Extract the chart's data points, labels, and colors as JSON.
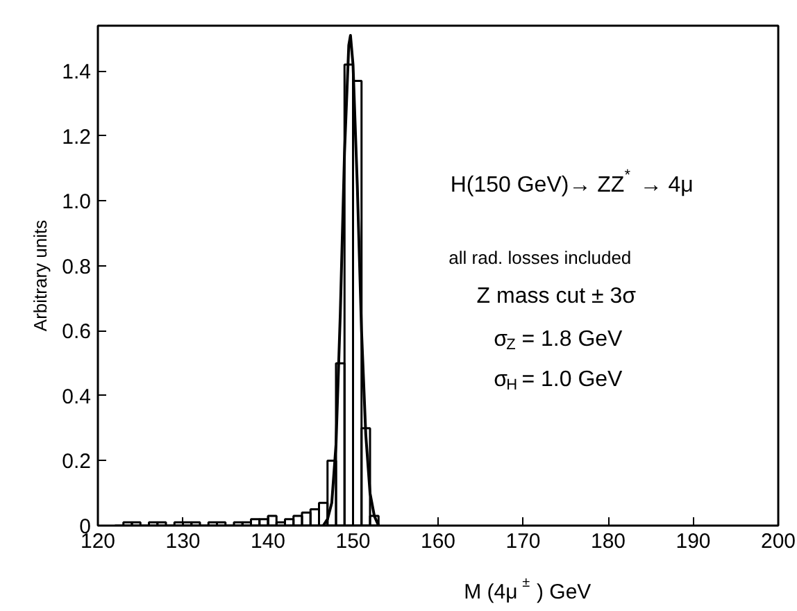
{
  "chart_data": {
    "type": "histogram",
    "xlabel": "M (4μ$^{±}$)  GeV",
    "ylabel": "Arbitrary units",
    "bins": [
      122,
      123,
      124,
      125,
      126,
      127,
      128,
      129,
      130,
      131,
      132,
      133,
      134,
      135,
      136,
      137,
      138,
      139,
      140,
      141,
      142,
      143,
      144,
      145,
      146,
      147,
      148,
      149,
      150,
      151,
      152,
      153
    ],
    "values": [
      0,
      0.01,
      0.01,
      0,
      0.01,
      0.01,
      0,
      0.01,
      0.01,
      0.01,
      0,
      0.01,
      0.01,
      0,
      0.01,
      0.01,
      0.02,
      0.02,
      0.03,
      0.01,
      0.02,
      0.03,
      0.04,
      0.05,
      0.07,
      0.2,
      0.5,
      1.42,
      1.37,
      0.3,
      0.03
    ],
    "color": "#000000",
    "series": [
      {
        "type": "line",
        "color": "#000000",
        "x": [
          146.5,
          147,
          147.5,
          148,
          148.5,
          149,
          149.5,
          149.7,
          150,
          150.5,
          151,
          151.5,
          152,
          152.5,
          153
        ],
        "values": [
          0,
          0.02,
          0.07,
          0.25,
          0.65,
          1.15,
          1.48,
          1.51,
          1.42,
          1.05,
          0.6,
          0.28,
          0.1,
          0.03,
          0
        ]
      }
    ],
    "xlim": [
      120,
      200
    ],
    "ylim": [
      0,
      1.54
    ],
    "xticks": [
      120,
      130,
      140,
      150,
      160,
      170,
      180,
      190,
      200
    ],
    "yticks": [
      0,
      0.2,
      0.4,
      0.6,
      0.8,
      {
        "value": 1,
        "label": "1.0"
      },
      1.2,
      1.4
    ],
    "grid": false,
    "annotations": [
      "H(150 GeV)→ ZZ$^{*}$→ 4μ",
      "all rad. losses included",
      "Z mass cut ± 3σ",
      "σ$_{Z}$ = 1.8 GeV",
      "σ$_{H}$ = 1.0 GeV"
    ]
  }
}
